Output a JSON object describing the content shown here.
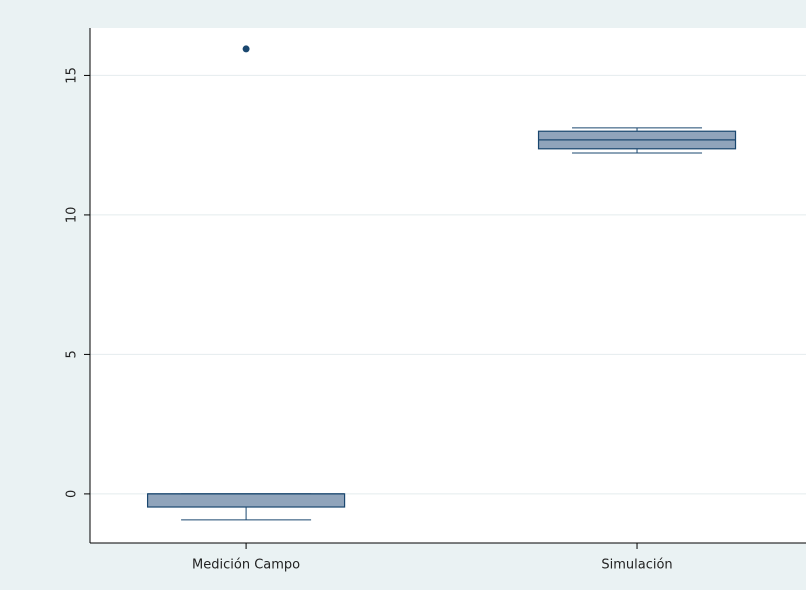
{
  "chart_data": {
    "type": "box",
    "categories": [
      "Medición Campo",
      "Simulación"
    ],
    "boxes": [
      {
        "min": -0.93,
        "q1": -0.47,
        "median": 0,
        "q3": 0,
        "max": 0,
        "outliers": [
          15.95
        ]
      },
      {
        "min": 12.22,
        "q1": 12.37,
        "median": 12.69,
        "q3": 13.0,
        "max": 13.12,
        "outliers": []
      }
    ],
    "color": "#90a4bb",
    "ylim": [
      -1.76,
      16.7
    ],
    "yticks": [
      0,
      5,
      10,
      15
    ],
    "grid": true
  }
}
